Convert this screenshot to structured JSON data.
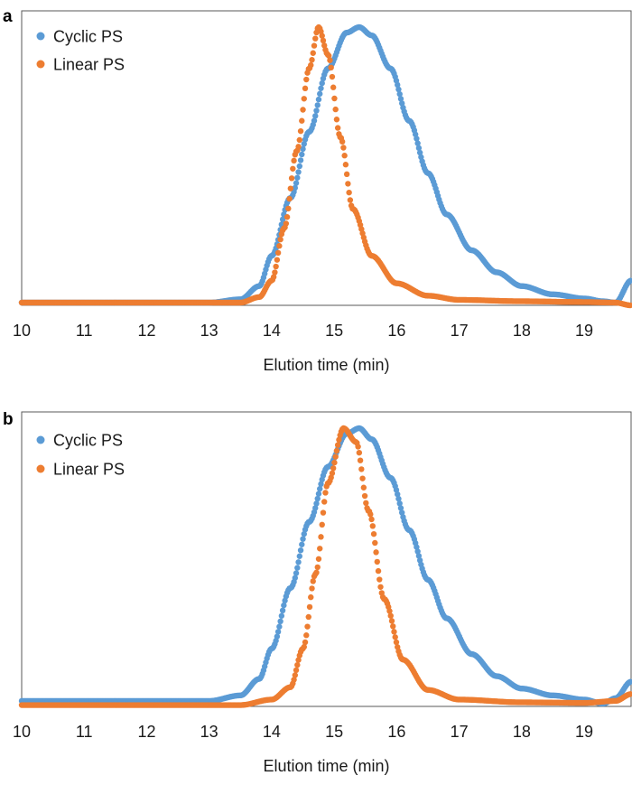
{
  "chart_data": [
    {
      "type": "scatter",
      "panel_label": "a",
      "xlabel": "Elution time (min)",
      "ylabel": "",
      "xlim": [
        10,
        19.75
      ],
      "ylim": [
        0,
        1
      ],
      "x_ticks": [
        "10",
        "11",
        "12",
        "13",
        "14",
        "15",
        "16",
        "17",
        "18",
        "19"
      ],
      "grid": false,
      "legend_position": "top-left",
      "series": [
        {
          "name": "Cyclic PS",
          "color": "#5b9bd5",
          "points": [
            [
              10,
              0
            ],
            [
              13.0,
              0
            ],
            [
              13.5,
              0.012
            ],
            [
              13.8,
              0.06
            ],
            [
              14.0,
              0.17
            ],
            [
              14.3,
              0.38
            ],
            [
              14.6,
              0.62
            ],
            [
              14.9,
              0.85
            ],
            [
              15.2,
              0.98
            ],
            [
              15.4,
              1.0
            ],
            [
              15.6,
              0.97
            ],
            [
              15.9,
              0.85
            ],
            [
              16.2,
              0.66
            ],
            [
              16.5,
              0.47
            ],
            [
              16.8,
              0.32
            ],
            [
              17.2,
              0.19
            ],
            [
              17.6,
              0.11
            ],
            [
              18.0,
              0.06
            ],
            [
              18.5,
              0.03
            ],
            [
              19.0,
              0.015
            ],
            [
              19.3,
              0.005
            ],
            [
              19.5,
              0.0
            ],
            [
              19.75,
              0.08
            ]
          ]
        },
        {
          "name": "Linear PS",
          "color": "#ed7d31",
          "points": [
            [
              10,
              0
            ],
            [
              13.5,
              0
            ],
            [
              13.8,
              0.02
            ],
            [
              14.0,
              0.08
            ],
            [
              14.2,
              0.27
            ],
            [
              14.4,
              0.55
            ],
            [
              14.6,
              0.85
            ],
            [
              14.75,
              1.0
            ],
            [
              14.9,
              0.9
            ],
            [
              15.1,
              0.6
            ],
            [
              15.3,
              0.34
            ],
            [
              15.6,
              0.17
            ],
            [
              16.0,
              0.07
            ],
            [
              16.5,
              0.025
            ],
            [
              17.0,
              0.01
            ],
            [
              18.0,
              0.005
            ],
            [
              19.0,
              0.002
            ],
            [
              19.5,
              0.0
            ],
            [
              19.75,
              -0.01
            ]
          ]
        }
      ]
    },
    {
      "type": "scatter",
      "panel_label": "b",
      "xlabel": "Elution time (min)",
      "ylabel": "",
      "xlim": [
        10,
        19.75
      ],
      "ylim": [
        0,
        1
      ],
      "x_ticks": [
        "10",
        "11",
        "12",
        "13",
        "14",
        "15",
        "16",
        "17",
        "18",
        "19"
      ],
      "grid": false,
      "legend_position": "top-left",
      "series": [
        {
          "name": "Cyclic PS",
          "color": "#5b9bd5",
          "points": [
            [
              10,
              0.01
            ],
            [
              13.0,
              0.01
            ],
            [
              13.5,
              0.03
            ],
            [
              13.8,
              0.09
            ],
            [
              14.0,
              0.2
            ],
            [
              14.3,
              0.42
            ],
            [
              14.6,
              0.66
            ],
            [
              14.9,
              0.86
            ],
            [
              15.2,
              0.98
            ],
            [
              15.4,
              1.0
            ],
            [
              15.6,
              0.96
            ],
            [
              15.9,
              0.82
            ],
            [
              16.2,
              0.63
            ],
            [
              16.5,
              0.45
            ],
            [
              16.8,
              0.31
            ],
            [
              17.2,
              0.18
            ],
            [
              17.6,
              0.1
            ],
            [
              18.0,
              0.055
            ],
            [
              18.5,
              0.03
            ],
            [
              19.0,
              0.015
            ],
            [
              19.3,
              0.0
            ],
            [
              19.5,
              0.02
            ],
            [
              19.75,
              0.08
            ]
          ]
        },
        {
          "name": "Linear PS",
          "color": "#ed7d31",
          "points": [
            [
              10,
              -0.005
            ],
            [
              13.5,
              -0.005
            ],
            [
              14.0,
              0.015
            ],
            [
              14.3,
              0.06
            ],
            [
              14.5,
              0.2
            ],
            [
              14.7,
              0.47
            ],
            [
              14.9,
              0.8
            ],
            [
              15.15,
              1.0
            ],
            [
              15.35,
              0.95
            ],
            [
              15.55,
              0.7
            ],
            [
              15.8,
              0.38
            ],
            [
              16.1,
              0.16
            ],
            [
              16.5,
              0.05
            ],
            [
              17.0,
              0.015
            ],
            [
              18.0,
              0.005
            ],
            [
              19.0,
              0.003
            ],
            [
              19.5,
              0.01
            ],
            [
              19.75,
              0.035
            ]
          ]
        }
      ]
    }
  ]
}
